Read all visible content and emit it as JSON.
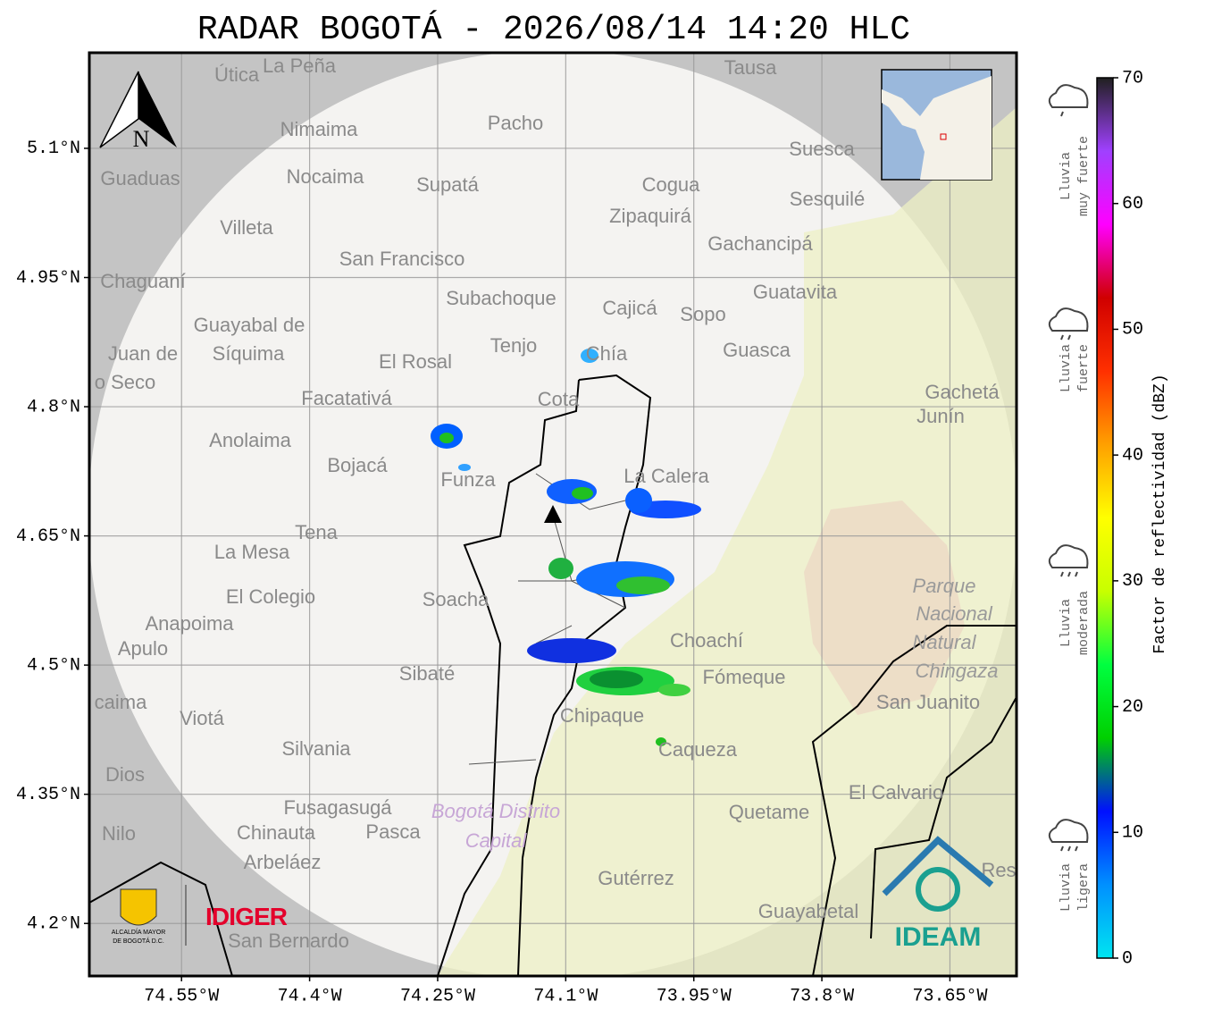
{
  "header": {
    "title": "RADAR BOGOTÁ - 2026/08/14 14:20 HLC"
  },
  "map": {
    "xlim": [
      -74.658,
      -73.572
    ],
    "ylim": [
      4.139,
      5.211
    ],
    "xticks": [
      {
        "value": -74.55,
        "label": "74.55°W"
      },
      {
        "value": -74.4,
        "label": "74.4°W"
      },
      {
        "value": -74.25,
        "label": "74.25°W"
      },
      {
        "value": -74.1,
        "label": "74.1°W"
      },
      {
        "value": -73.95,
        "label": "73.95°W"
      },
      {
        "value": -73.8,
        "label": "73.8°W"
      },
      {
        "value": -73.65,
        "label": "73.65°W"
      }
    ],
    "yticks": [
      {
        "value": 5.1,
        "label": "5.1°N"
      },
      {
        "value": 4.95,
        "label": "4.95°N"
      },
      {
        "value": 4.8,
        "label": "4.8°N"
      },
      {
        "value": 4.65,
        "label": "4.65°N"
      },
      {
        "value": 4.5,
        "label": "4.5°N"
      },
      {
        "value": 4.35,
        "label": "4.35°N"
      },
      {
        "value": 4.2,
        "label": "4.2°N"
      }
    ],
    "grid": true,
    "north_label": "N",
    "places": [
      "Útica",
      "La Peña",
      "Tausa",
      "Pacho",
      "Nimaima",
      "Guaduas",
      "Nocaima",
      "Supatá",
      "Cogua",
      "Suesca",
      "Sesquilé",
      "Zipaquirá",
      "Villeta",
      "Gachancipá",
      "San Francisco",
      "Chaguaní",
      "Guatavita",
      "Subachoque",
      "Cajicá",
      "Sopo",
      "Guayabal de",
      "Síquima",
      "Juan de",
      "o Seco",
      "Tenjo",
      "Chía",
      "El Rosal",
      "Guasca",
      "Facatativá",
      "Cota",
      "Gachetá",
      "Junín",
      "Anolaima",
      "Bojacá",
      "Funza",
      "La Calera",
      "Tena",
      "La Mesa",
      "El Colegio",
      "Soacha",
      "Anapoima",
      "Apulo",
      "Choachí",
      "Sibaté",
      "Fómeque",
      "San Juanito",
      "caima",
      "Viotá",
      "Chipaque",
      "Silvania",
      "Caqueza",
      "Dios",
      "El Calvario",
      "Fusagasugá",
      "Quetame",
      "Nilo",
      "Chinauta",
      "Pasca",
      "Arbeláez",
      "Gutérrez",
      "Guayabetal",
      "San Bernardo",
      "Res"
    ],
    "park_labels": [
      "Parque",
      "Nacional",
      "Natural",
      "Chingaza"
    ],
    "district_labels": [
      "Bogotá Distrito",
      "Capital"
    ]
  },
  "colorbar": {
    "label": "Factor de reflectividad (dBZ)",
    "lim": [
      0,
      70
    ],
    "ticks": [
      0,
      10,
      20,
      30,
      40,
      50,
      60,
      70
    ],
    "colors": [
      "#00e5f0",
      "#0090ff",
      "#0010ff",
      "#00d000",
      "#00ff40",
      "#c8ff00",
      "#ffff00",
      "#ffa000",
      "#ff3000",
      "#d00000",
      "#ff00ff",
      "#a040ff",
      "#202020"
    ]
  },
  "intensity_legend": [
    {
      "lines": [
        "Lluvia",
        "muy fuerte"
      ]
    },
    {
      "lines": [
        "Lluvia",
        "fuerte"
      ]
    },
    {
      "lines": [
        "Lluvia",
        "moderada"
      ]
    },
    {
      "lines": [
        "Lluvia",
        "ligera"
      ]
    }
  ],
  "logos": {
    "alcaldia": [
      "ALCALDÍA MAYOR",
      "DE BOGOTÁ D.C."
    ],
    "idiger": "IDIGER",
    "ideam": "IDEAM"
  }
}
